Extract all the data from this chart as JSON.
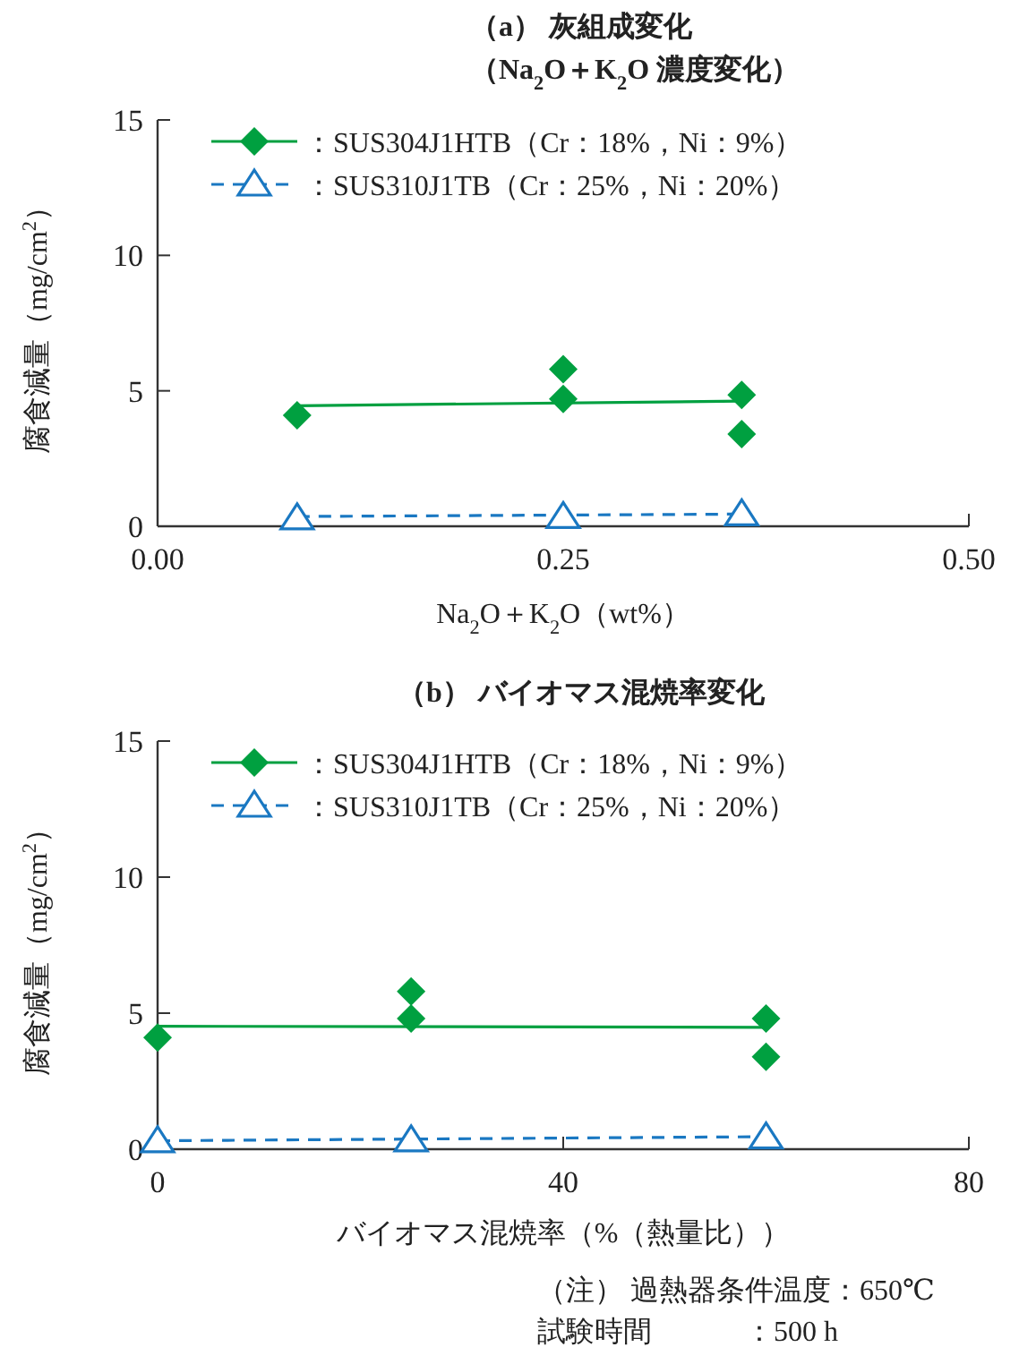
{
  "chart_data": [
    {
      "type": "scatter",
      "title": "（a） 灰組成変化",
      "subtitle": "（Na$_{2}$O＋K$_{2}$O 濃度変化）",
      "xlabel": "Na$_{2}$O＋K$_{2}$O（wt%）",
      "ylabel": "腐食減量（mg/cm$^{2}$）",
      "xlim": [
        0,
        0.5
      ],
      "xticks": [
        {
          "value": 0,
          "label": "0.00"
        },
        {
          "value": 0.25,
          "label": "0.25"
        },
        {
          "value": 0.5,
          "label": "0.50"
        }
      ],
      "ylim": [
        0,
        15
      ],
      "yticks": [
        0,
        5,
        10,
        15
      ],
      "grid": false,
      "legend": "top left",
      "series": [
        {
          "type": "scatter",
          "name": "：SUS304J1HTB（Cr：18%，Ni：9%）",
          "color": "#00a040",
          "marker": "diamond",
          "x": [
            0.086,
            0.25,
            0.25,
            0.36,
            0.36
          ],
          "values": [
            4.1,
            5.8,
            4.7,
            4.85,
            3.4
          ]
        },
        {
          "type": "scatter",
          "name": "：SUS310J1TB（Cr：25%，Ni：20%）",
          "color": "#1a78c2",
          "marker": "triangle",
          "x": [
            0.086,
            0.25,
            0.36
          ],
          "values": [
            0.3,
            0.35,
            0.45
          ]
        },
        {
          "type": "line",
          "color": "#00a040",
          "line_style": "solid",
          "x": [
            0.086,
            0.36
          ],
          "values": [
            4.45,
            4.62
          ]
        },
        {
          "type": "line",
          "color": "#1a78c2",
          "line_style": "dashed",
          "x": [
            0.086,
            0.36
          ],
          "values": [
            0.36,
            0.45
          ]
        }
      ]
    },
    {
      "type": "scatter",
      "title": "（b） バイオマス混焼率変化",
      "xlabel": "バイオマス混焼率（%（熱量比））",
      "ylabel": "腐食減量（mg/cm$^{2}$）",
      "xlim": [
        0,
        80
      ],
      "xticks": [
        0,
        40,
        80
      ],
      "ylim": [
        0,
        15
      ],
      "yticks": [
        0,
        5,
        10,
        15
      ],
      "grid": false,
      "legend": "top left",
      "annotations": [
        "（注） 過熱器条件温度：650℃",
        "試験時間　　　 ：500 h"
      ],
      "series": [
        {
          "type": "scatter",
          "name": "：SUS304J1HTB（Cr：18%，Ni：9%）",
          "color": "#00a040",
          "marker": "diamond",
          "x": [
            0,
            25,
            25,
            60,
            60
          ],
          "values": [
            4.1,
            5.8,
            4.8,
            4.8,
            3.4
          ]
        },
        {
          "type": "scatter",
          "name": "：SUS310J1TB（Cr：25%，Ni：20%）",
          "color": "#1a78c2",
          "marker": "triangle",
          "x": [
            0,
            25,
            60
          ],
          "values": [
            0.3,
            0.33,
            0.44
          ]
        },
        {
          "type": "line",
          "color": "#00a040",
          "line_style": "solid",
          "x": [
            0,
            60
          ],
          "values": [
            4.52,
            4.48
          ]
        },
        {
          "type": "line",
          "color": "#1a78c2",
          "line_style": "dashed",
          "x": [
            0,
            60
          ],
          "values": [
            0.31,
            0.46
          ]
        }
      ]
    }
  ]
}
